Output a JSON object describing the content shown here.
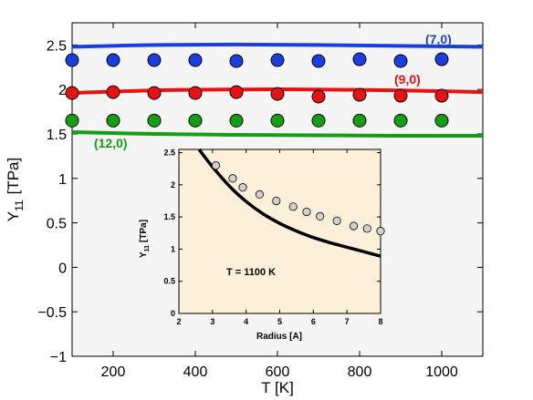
{
  "chart_data": [
    {
      "type": "line",
      "xlabel": "T [K]",
      "ylabel": "Y",
      "ylabel_sub": "11",
      "ylabel_unit": "[TPa]",
      "xlim": [
        100,
        1100
      ],
      "ylim": [
        -1,
        2.75
      ],
      "xticks": [
        200,
        400,
        600,
        800,
        1000
      ],
      "yticks": [
        {
          "v": 2.5,
          "label": "2.5"
        },
        {
          "v": 2,
          "label": "2"
        },
        {
          "v": 1.5,
          "label": "1.5"
        },
        {
          "v": 1,
          "label": "1"
        },
        {
          "v": 0.5,
          "label": "0.5"
        },
        {
          "v": 0,
          "label": "0"
        },
        {
          "v": -0.5,
          "label": "−0.5"
        },
        {
          "v": -1,
          "label": "−1"
        }
      ],
      "series": [
        {
          "name": "(7,0)",
          "color": "#1a3fe0",
          "curve": {
            "x": [
              100,
              300,
              500,
              700,
              900,
              1100
            ],
            "y": [
              2.48,
              2.5,
              2.505,
              2.5,
              2.49,
              2.48
            ]
          },
          "points": {
            "x": [
              100,
              200,
              300,
              400,
              500,
              600,
              700,
              800,
              900,
              1000
            ],
            "y": [
              2.33,
              2.33,
              2.33,
              2.33,
              2.32,
              2.33,
              2.32,
              2.34,
              2.32,
              2.34
            ]
          }
        },
        {
          "name": "(9,0)",
          "color": "#e81212",
          "curve": {
            "x": [
              100,
              300,
              500,
              700,
              900,
              1100
            ],
            "y": [
              1.96,
              1.99,
              2.0,
              2.0,
              1.99,
              1.97
            ]
          },
          "points": {
            "x": [
              100,
              200,
              300,
              400,
              500,
              600,
              700,
              800,
              900,
              1000
            ],
            "y": [
              1.96,
              1.97,
              1.96,
              1.96,
              1.97,
              1.95,
              1.92,
              1.94,
              1.93,
              1.93
            ]
          }
        },
        {
          "name": "(12,0)",
          "color": "#12a012",
          "curve": {
            "x": [
              100,
              300,
              500,
              700,
              900,
              1100
            ],
            "y": [
              1.52,
              1.5,
              1.49,
              1.485,
              1.48,
              1.48
            ]
          },
          "points": {
            "x": [
              100,
              200,
              300,
              400,
              500,
              600,
              700,
              800,
              900,
              1000
            ],
            "y": [
              1.65,
              1.65,
              1.65,
              1.65,
              1.65,
              1.65,
              1.65,
              1.65,
              1.65,
              1.65
            ]
          }
        }
      ]
    },
    {
      "type": "scatter",
      "xlabel": "Radius [A]",
      "ylabel": "Y",
      "ylabel_sub": "11",
      "ylabel_unit": "[TPa]",
      "annotation": "T = 1100 K",
      "xlim": [
        2,
        8
      ],
      "ylim": [
        0,
        2.55
      ],
      "xticks": [
        2,
        3,
        4,
        5,
        6,
        7,
        8
      ],
      "yticks": [
        {
          "v": 0,
          "label": "0"
        },
        {
          "v": 0.5,
          "label": "0.5"
        },
        {
          "v": 1,
          "label": "1"
        },
        {
          "v": 1.5,
          "label": "1.5"
        },
        {
          "v": 2,
          "label": "2"
        },
        {
          "v": 2.5,
          "label": "2.5"
        }
      ],
      "curve": {
        "x": [
          2.6,
          3,
          3.5,
          4,
          4.5,
          5,
          5.5,
          6,
          6.5,
          7,
          7.5,
          8
        ],
        "y": [
          2.55,
          2.28,
          1.98,
          1.74,
          1.55,
          1.4,
          1.28,
          1.18,
          1.1,
          1.03,
          0.96,
          0.89
        ]
      },
      "points": {
        "x": [
          3.1,
          3.6,
          3.9,
          4.4,
          4.9,
          5.4,
          5.8,
          6.2,
          6.7,
          7.2,
          7.6,
          8.0
        ],
        "y": [
          2.3,
          2.1,
          1.96,
          1.85,
          1.75,
          1.66,
          1.58,
          1.51,
          1.44,
          1.36,
          1.32,
          1.28
        ]
      }
    }
  ]
}
